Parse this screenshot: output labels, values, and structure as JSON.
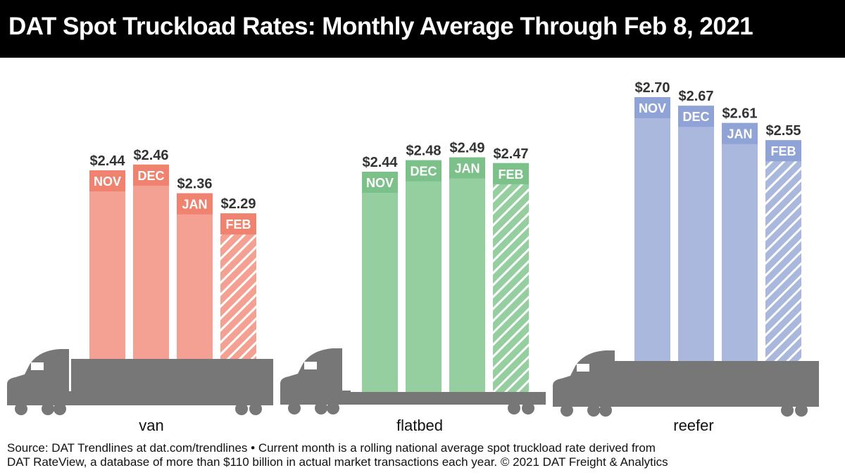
{
  "title": "DAT Spot Truckload Rates: Monthly Average Through Feb 8, 2021",
  "footer": {
    "line1": "Source: DAT Trendlines at dat.com/trendlines • Current month is a rolling national average spot truckload rate derived from",
    "line2": "DAT RateView, a database of more than $110 billion in actual market transactions each year. © 2021 DAT Freight & Analytics"
  },
  "chart_data": {
    "type": "bar",
    "title": "DAT Spot Truckload Rates: Monthly Average Through Feb 8, 2021",
    "categories": [
      "NOV",
      "DEC",
      "JAN",
      "FEB"
    ],
    "series": [
      {
        "name": "van",
        "values": [
          2.44,
          2.46,
          2.36,
          2.29
        ],
        "labels": [
          "$2.44",
          "$2.46",
          "$2.36",
          "$2.29"
        ],
        "color": "#f4a194",
        "band_color": "#f08270"
      },
      {
        "name": "flatbed",
        "values": [
          2.44,
          2.48,
          2.49,
          2.47
        ],
        "labels": [
          "$2.44",
          "$2.48",
          "$2.49",
          "$2.47"
        ],
        "color": "#95cfa0",
        "band_color": "#7cc08a"
      },
      {
        "name": "reefer",
        "values": [
          2.7,
          2.67,
          2.61,
          2.55
        ],
        "labels": [
          "$2.70",
          "$2.67",
          "$2.61",
          "$2.55"
        ],
        "color": "#a9b8dc",
        "band_color": "#8fa3d6"
      }
    ],
    "hatched_category": "FEB",
    "truck_color": "#777777"
  }
}
